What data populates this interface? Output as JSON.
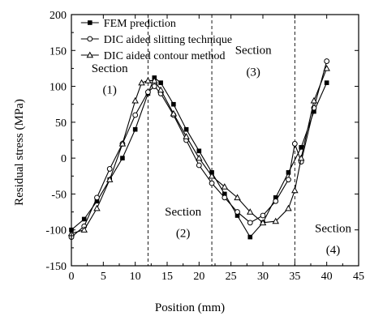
{
  "chart_data": {
    "type": "line",
    "xlabel": "Position (mm)",
    "ylabel": "Residual stress (MPa)",
    "xlim": [
      0,
      45
    ],
    "ylim": [
      -150,
      200
    ],
    "xticks": [
      0,
      5,
      10,
      15,
      20,
      25,
      30,
      35,
      40,
      45
    ],
    "yticks": [
      -150,
      -100,
      -50,
      0,
      50,
      100,
      150,
      200
    ],
    "grid": false,
    "legend_position": "top-left",
    "series": [
      {
        "name": "FEM prediction",
        "marker": "filled-square",
        "color": "#000000",
        "x": [
          0,
          2,
          4,
          6,
          8,
          10,
          12,
          13,
          14,
          16,
          18,
          20,
          22,
          24,
          26,
          28,
          30,
          32,
          34,
          36,
          38,
          40
        ],
        "y": [
          -100,
          -85,
          -60,
          -30,
          0,
          40,
          90,
          112,
          105,
          75,
          40,
          10,
          -20,
          -50,
          -80,
          -110,
          -90,
          -55,
          -20,
          15,
          65,
          105
        ]
      },
      {
        "name": "DIC aided slitting technique",
        "marker": "open-circle",
        "color": "#000000",
        "x": [
          0,
          2,
          4,
          6,
          8,
          10,
          12,
          13,
          14,
          16,
          18,
          20,
          22,
          24,
          26,
          28,
          30,
          32,
          34,
          35,
          36,
          38,
          40
        ],
        "y": [
          -110,
          -95,
          -55,
          -15,
          20,
          60,
          92,
          100,
          90,
          60,
          25,
          -10,
          -35,
          -55,
          -75,
          -90,
          -80,
          -60,
          -30,
          20,
          -5,
          70,
          135
        ]
      },
      {
        "name": "DIC aided contour method",
        "marker": "open-triangle",
        "color": "#000000",
        "x": [
          0,
          2,
          4,
          6,
          8,
          10,
          11,
          12,
          13,
          14,
          16,
          18,
          20,
          22,
          24,
          26,
          28,
          30,
          32,
          34,
          35,
          36,
          38,
          40
        ],
        "y": [
          -105,
          -100,
          -70,
          -30,
          20,
          80,
          105,
          108,
          108,
          95,
          62,
          30,
          0,
          -25,
          -40,
          -55,
          -75,
          -90,
          -88,
          -70,
          -45,
          0,
          80,
          125
        ]
      }
    ],
    "vlines": [
      12,
      22,
      35
    ],
    "annotations": [
      {
        "text": "Section",
        "x": 6,
        "y": 120
      },
      {
        "text": "(1)",
        "x": 6,
        "y": 90
      },
      {
        "text": "Section",
        "x": 28.5,
        "y": 145
      },
      {
        "text": "(3)",
        "x": 28.5,
        "y": 115
      },
      {
        "text": "Section",
        "x": 17.5,
        "y": -80
      },
      {
        "text": "(2)",
        "x": 17.5,
        "y": -110
      },
      {
        "text": "Section",
        "x": 41,
        "y": -103
      },
      {
        "text": "(4)",
        "x": 41,
        "y": -133
      }
    ]
  }
}
